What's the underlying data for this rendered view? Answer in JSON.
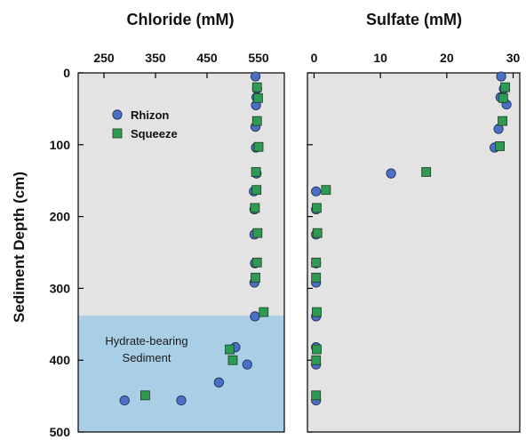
{
  "colors": {
    "panel_background": "#e3e3e3",
    "hydrate_zone": "#a8cfe6",
    "rhizon": "#4a6fc4",
    "squeeze": "#2e9a52",
    "marker_edge": "#1d2b4a"
  },
  "y_axis": {
    "label": "Sediment Depth (cm)",
    "range": [
      0,
      500
    ],
    "ticks": [
      "0",
      "100",
      "200",
      "300",
      "400",
      "500"
    ]
  },
  "legend": {
    "position": "top-left",
    "rhizon_label": "Rhizon",
    "squeeze_label": "Squeeze"
  },
  "annotation": {
    "line1": "Hydrate-bearing",
    "line2": "Sediment",
    "depth_range": [
      338,
      500
    ]
  },
  "chart_data": [
    {
      "type": "scatter",
      "title": "Chloride (mM)",
      "x_axis_position": "top",
      "xlim": [
        200,
        600
      ],
      "ylim": [
        500,
        0
      ],
      "x_ticks": [
        "250",
        "350",
        "450",
        "550"
      ],
      "series": [
        {
          "name": "Rhizon",
          "marker": "circle",
          "points": [
            {
              "x": 544,
              "y": 5
            },
            {
              "x": 547,
              "y": 22
            },
            {
              "x": 546,
              "y": 34
            },
            {
              "x": 545,
              "y": 45
            },
            {
              "x": 544,
              "y": 75
            },
            {
              "x": 545,
              "y": 104
            },
            {
              "x": 546,
              "y": 140
            },
            {
              "x": 541,
              "y": 165
            },
            {
              "x": 542,
              "y": 190
            },
            {
              "x": 542,
              "y": 225
            },
            {
              "x": 543,
              "y": 265
            },
            {
              "x": 542,
              "y": 292
            },
            {
              "x": 543,
              "y": 339
            },
            {
              "x": 505,
              "y": 382
            },
            {
              "x": 528,
              "y": 406
            },
            {
              "x": 473,
              "y": 431
            },
            {
              "x": 290,
              "y": 456
            },
            {
              "x": 400,
              "y": 456
            }
          ]
        },
        {
          "name": "Squeeze",
          "marker": "square",
          "points": [
            {
              "x": 547,
              "y": 20
            },
            {
              "x": 549,
              "y": 35
            },
            {
              "x": 547,
              "y": 67
            },
            {
              "x": 550,
              "y": 103
            },
            {
              "x": 545,
              "y": 138
            },
            {
              "x": 546,
              "y": 163
            },
            {
              "x": 543,
              "y": 188
            },
            {
              "x": 548,
              "y": 223
            },
            {
              "x": 547,
              "y": 264
            },
            {
              "x": 544,
              "y": 285
            },
            {
              "x": 560,
              "y": 333
            },
            {
              "x": 494,
              "y": 385
            },
            {
              "x": 500,
              "y": 400
            },
            {
              "x": 330,
              "y": 449
            }
          ]
        }
      ]
    },
    {
      "type": "scatter",
      "title": "Sulfate (mM)",
      "x_axis_position": "top",
      "xlim": [
        -1,
        31
      ],
      "ylim": [
        500,
        0
      ],
      "x_ticks": [
        "0",
        "10",
        "20",
        "30"
      ],
      "series": [
        {
          "name": "Rhizon",
          "marker": "circle",
          "points": [
            {
              "x": 28.2,
              "y": 5
            },
            {
              "x": 28.6,
              "y": 22
            },
            {
              "x": 28.1,
              "y": 34
            },
            {
              "x": 29.0,
              "y": 44
            },
            {
              "x": 27.8,
              "y": 78
            },
            {
              "x": 27.2,
              "y": 104
            },
            {
              "x": 11.6,
              "y": 140
            },
            {
              "x": 0.3,
              "y": 165
            },
            {
              "x": 0.3,
              "y": 190
            },
            {
              "x": 0.3,
              "y": 225
            },
            {
              "x": 0.3,
              "y": 265
            },
            {
              "x": 0.3,
              "y": 292
            },
            {
              "x": 0.3,
              "y": 339
            },
            {
              "x": 0.3,
              "y": 382
            },
            {
              "x": 0.3,
              "y": 406
            },
            {
              "x": 0.3,
              "y": 456
            }
          ]
        },
        {
          "name": "Squeeze",
          "marker": "square",
          "points": [
            {
              "x": 28.8,
              "y": 20
            },
            {
              "x": 28.5,
              "y": 35
            },
            {
              "x": 28.4,
              "y": 67
            },
            {
              "x": 28.0,
              "y": 102
            },
            {
              "x": 16.9,
              "y": 138
            },
            {
              "x": 1.8,
              "y": 163
            },
            {
              "x": 0.4,
              "y": 188
            },
            {
              "x": 0.5,
              "y": 223
            },
            {
              "x": 0.3,
              "y": 264
            },
            {
              "x": 0.3,
              "y": 285
            },
            {
              "x": 0.4,
              "y": 333
            },
            {
              "x": 0.4,
              "y": 385
            },
            {
              "x": 0.3,
              "y": 400
            },
            {
              "x": 0.3,
              "y": 449
            }
          ]
        }
      ]
    }
  ]
}
